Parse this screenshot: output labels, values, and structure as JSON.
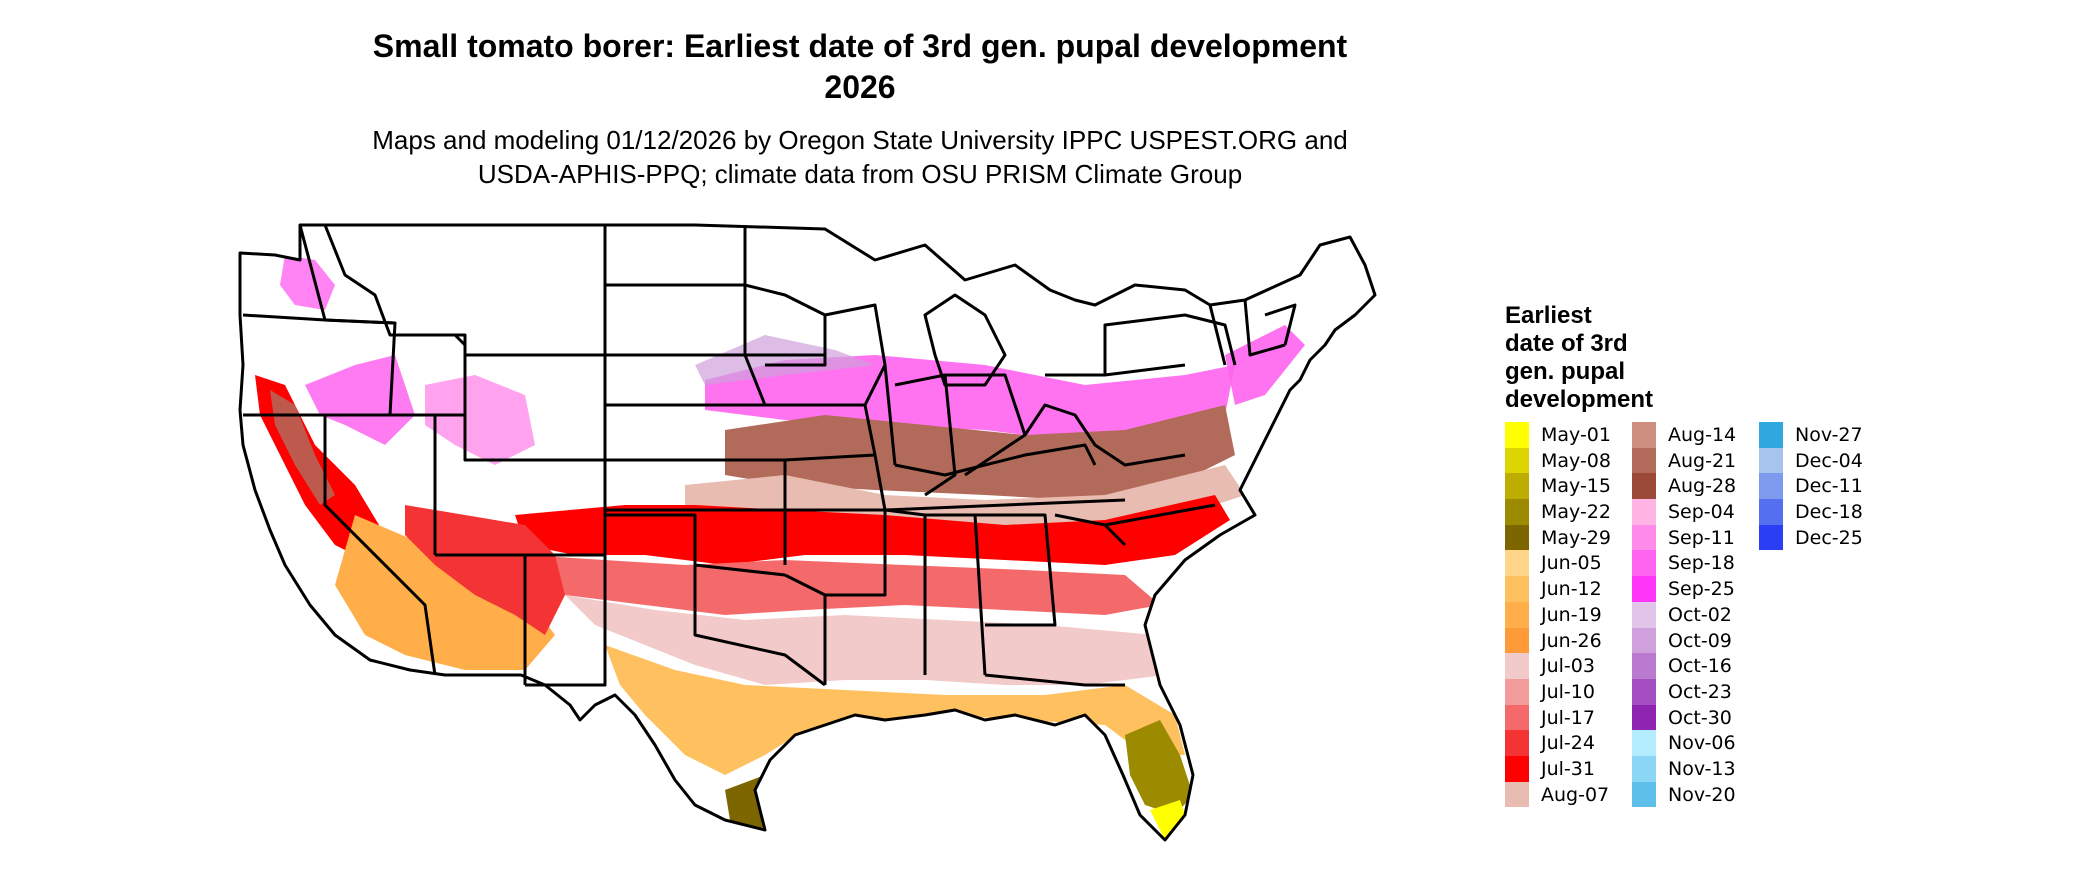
{
  "title_lines": [
    "Small tomato borer: Earliest date of 3rd gen. pupal development",
    "2026"
  ],
  "subtitle_lines": [
    "Maps and modeling 01/12/2026 by Oregon State University IPPC USPEST.ORG and",
    "USDA-APHIS-PPQ; climate data from OSU PRISM Climate Group"
  ],
  "legend": {
    "title_lines": [
      "Earliest",
      "date of 3rd",
      "gen. pupal",
      "development"
    ],
    "columns": [
      [
        {
          "label": "May-01",
          "color": "#FFFF00"
        },
        {
          "label": "May-08",
          "color": "#DCD500"
        },
        {
          "label": "May-15",
          "color": "#BCAD00"
        },
        {
          "label": "May-22",
          "color": "#9C8A00"
        },
        {
          "label": "May-29",
          "color": "#7D6600"
        },
        {
          "label": "Jun-05",
          "color": "#FFD58A"
        },
        {
          "label": "Jun-12",
          "color": "#FFC060"
        },
        {
          "label": "Jun-19",
          "color": "#FFAE4A"
        },
        {
          "label": "Jun-26",
          "color": "#FF9A38"
        },
        {
          "label": "Jul-03",
          "color": "#F3CACA"
        },
        {
          "label": "Jul-10",
          "color": "#F29B9B"
        },
        {
          "label": "Jul-17",
          "color": "#F46A6A"
        },
        {
          "label": "Jul-24",
          "color": "#F43434"
        },
        {
          "label": "Jul-31",
          "color": "#FF0000"
        },
        {
          "label": "Aug-07",
          "color": "#E8BCB0"
        }
      ],
      [
        {
          "label": "Aug-14",
          "color": "#CE8E80"
        },
        {
          "label": "Aug-21",
          "color": "#B26A5A"
        },
        {
          "label": "Aug-28",
          "color": "#9A4A37"
        },
        {
          "label": "Sep-04",
          "color": "#FFB4E4"
        },
        {
          "label": "Sep-11",
          "color": "#FF8CEB"
        },
        {
          "label": "Sep-18",
          "color": "#FF64F0"
        },
        {
          "label": "Sep-25",
          "color": "#FF36F7"
        },
        {
          "label": "Oct-02",
          "color": "#E2C4E8"
        },
        {
          "label": "Oct-09",
          "color": "#CFA0DC"
        },
        {
          "label": "Oct-16",
          "color": "#BA7AD0"
        },
        {
          "label": "Oct-23",
          "color": "#A44EC2"
        },
        {
          "label": "Oct-30",
          "color": "#8E24B0"
        },
        {
          "label": "Nov-06",
          "color": "#B4ECFF"
        },
        {
          "label": "Nov-13",
          "color": "#8AD6F4"
        },
        {
          "label": "Nov-20",
          "color": "#5EC0EA"
        }
      ],
      [
        {
          "label": "Nov-27",
          "color": "#2EA8DE"
        },
        {
          "label": "Dec-04",
          "color": "#A6C4EC"
        },
        {
          "label": "Dec-11",
          "color": "#7E9AEE"
        },
        {
          "label": "Dec-18",
          "color": "#5470F0"
        },
        {
          "label": "Dec-25",
          "color": "#2A3EF6"
        }
      ]
    ]
  },
  "map": {
    "region": "Contiguous United States",
    "state_borders": true,
    "no_data_color": "#FFFFFF"
  }
}
